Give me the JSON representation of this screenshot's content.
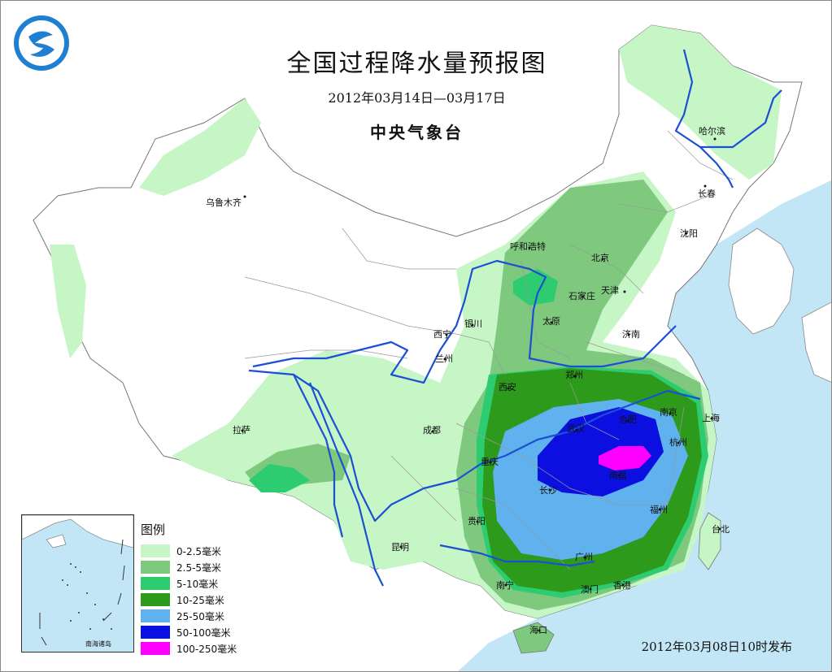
{
  "header": {
    "title": "全国过程降水量预报图",
    "date_range": "2012年03月14日—03月17日",
    "organization": "中央气象台"
  },
  "footer": {
    "issued": "2012年03月08日10时发布"
  },
  "legend": {
    "title": "图例",
    "items": [
      {
        "label": "0-2.5毫米",
        "color": "#c6f5c6"
      },
      {
        "label": "2.5-5毫米",
        "color": "#7fc97f"
      },
      {
        "label": "5-10毫米",
        "color": "#2ecc71"
      },
      {
        "label": "10-25毫米",
        "color": "#2e9a1c"
      },
      {
        "label": "25-50毫米",
        "color": "#5fb2ee"
      },
      {
        "label": "50-100毫米",
        "color": "#0b10e0"
      },
      {
        "label": "100-250毫米",
        "color": "#ff00ff"
      }
    ]
  },
  "cities": {
    "urumqi": "乌鲁木齐",
    "harbin": "哈尔滨",
    "changchun": "长春",
    "shenyang": "沈阳",
    "hohhot": "呼和浩特",
    "beijing": "北京",
    "tianjin": "天津",
    "shijiazhuang": "石家庄",
    "taiyuan": "太原",
    "jinan": "济南",
    "yinchuan": "银川",
    "xining": "西宁",
    "lanzhou": "兰州",
    "zhengzhou": "郑州",
    "xian": "西安",
    "nanjing": "南京",
    "shanghai": "上海",
    "hefei": "合肥",
    "wuhan": "武汉",
    "hangzhou": "杭州",
    "lhasa": "拉萨",
    "chengdu": "成都",
    "chongqing": "重庆",
    "nanchang": "南昌",
    "changsha": "长沙",
    "fuzhou": "福州",
    "taipei": "台北",
    "guiyang": "贵阳",
    "kunming": "昆明",
    "guangzhou": "广州",
    "nanning": "南宁",
    "macau": "澳门",
    "hongkong": "香港",
    "haikou": "海口"
  },
  "inset": {
    "label": "南海诸岛"
  },
  "colors": {
    "sea": "#c2e6f5",
    "river": "#1a4fd6",
    "border": "#888888"
  }
}
